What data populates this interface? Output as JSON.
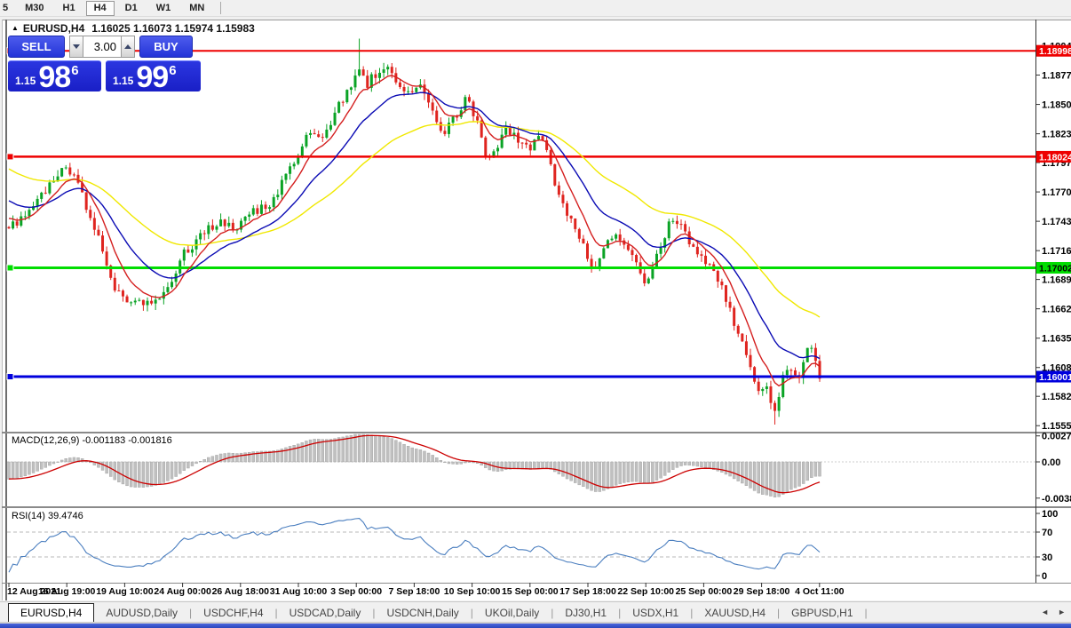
{
  "toolbar": {
    "timeframes": [
      "5",
      "M30",
      "H1",
      "H4",
      "D1",
      "W1",
      "MN"
    ],
    "active_timeframe": "H4"
  },
  "icons": {
    "collapse_arrow": "▲",
    "spinner_up": "up-triangle",
    "spinner_down": "down-triangle",
    "tab_scroll_left": "◄",
    "tab_scroll_right": "►"
  },
  "quote": {
    "sell_label": "SELL",
    "buy_label": "BUY",
    "volume": "3.00",
    "sell": {
      "prefix": "1.15",
      "big": "98",
      "sup": "6"
    },
    "buy": {
      "prefix": "1.15",
      "big": "99",
      "sup": "6"
    }
  },
  "symbol_tabs": {
    "tabs": [
      {
        "label": "EURUSD,H4",
        "active": true
      },
      {
        "label": "AUDUSD,Daily",
        "active": false
      },
      {
        "label": "USDCHF,H4",
        "active": false
      },
      {
        "label": "USDCAD,Daily",
        "active": false
      },
      {
        "label": "USDCNH,Daily",
        "active": false
      },
      {
        "label": "UKOil,Daily",
        "active": false
      },
      {
        "label": "DJ30,H1",
        "active": false
      },
      {
        "label": "USDX,H1",
        "active": false
      },
      {
        "label": "XAUUSD,H4",
        "active": false
      },
      {
        "label": "GBPUSD,H1",
        "active": false
      }
    ]
  },
  "chart_data": {
    "type": "candlestick",
    "title": "EURUSD,H4",
    "ohlc_line": "1.16025 1.16073 1.15974 1.15983",
    "bars": 200,
    "last_close": 1.15983,
    "price_axis": {
      "ticks": [
        "1.19045",
        "1.18775",
        "1.18505",
        "1.18235",
        "1.17970",
        "1.17700",
        "1.17430",
        "1.17160",
        "1.16895",
        "1.16625",
        "1.16355",
        "1.16085",
        "1.15820",
        "1.15550"
      ],
      "min": 1.15511,
      "max": 1.19253
    },
    "hlines": [
      {
        "price": 1.18998,
        "label": "1.18998",
        "color": "#ee0000",
        "label_text_color": "#ffffff",
        "width": 2
      },
      {
        "price": 1.18024,
        "label": "1.18024",
        "color": "#ee0000",
        "label_text_color": "#ffffff",
        "width": 2.5
      },
      {
        "price": 1.17002,
        "label": "1.17002",
        "color": "#00dd00",
        "label_text_color": "#000000",
        "width": 3
      },
      {
        "price": 1.16001,
        "label": "1.16001",
        "color": "#0000dd",
        "label_text_color": "#ffffff",
        "width": 3
      }
    ],
    "time_axis": [
      "12 Aug 2021",
      "16 Aug 19:00",
      "19 Aug 10:00",
      "24 Aug 00:00",
      "26 Aug 18:00",
      "31 Aug 10:00",
      "3 Sep 00:00",
      "7 Sep 18:00",
      "10 Sep 10:00",
      "15 Sep 00:00",
      "17 Sep 18:00",
      "22 Sep 10:00",
      "25 Sep 00:00",
      "29 Sep 18:00",
      "4 Oct 11:00"
    ],
    "price_path": [
      [
        0.0,
        1.1738
      ],
      [
        0.024,
        1.175
      ],
      [
        0.051,
        1.1778
      ],
      [
        0.066,
        1.1795
      ],
      [
        0.084,
        1.178
      ],
      [
        0.101,
        1.1745
      ],
      [
        0.117,
        1.1715
      ],
      [
        0.131,
        1.168
      ],
      [
        0.144,
        1.1668
      ],
      [
        0.161,
        1.1672
      ],
      [
        0.177,
        1.1665
      ],
      [
        0.193,
        1.168
      ],
      [
        0.215,
        1.1712
      ],
      [
        0.237,
        1.173
      ],
      [
        0.259,
        1.1742
      ],
      [
        0.281,
        1.1738
      ],
      [
        0.303,
        1.1752
      ],
      [
        0.325,
        1.1762
      ],
      [
        0.346,
        1.179
      ],
      [
        0.363,
        1.1815
      ],
      [
        0.376,
        1.1828
      ],
      [
        0.387,
        1.1818
      ],
      [
        0.401,
        1.184
      ],
      [
        0.415,
        1.186
      ],
      [
        0.426,
        1.1875
      ],
      [
        0.434,
        1.1885
      ],
      [
        0.442,
        1.187
      ],
      [
        0.45,
        1.1878
      ],
      [
        0.467,
        1.1885
      ],
      [
        0.481,
        1.1868
      ],
      [
        0.494,
        1.186
      ],
      [
        0.507,
        1.1868
      ],
      [
        0.521,
        1.1845
      ],
      [
        0.536,
        1.1822
      ],
      [
        0.551,
        1.184
      ],
      [
        0.562,
        1.1855
      ],
      [
        0.576,
        1.184
      ],
      [
        0.59,
        1.18
      ],
      [
        0.601,
        1.1812
      ],
      [
        0.614,
        1.183
      ],
      [
        0.627,
        1.182
      ],
      [
        0.641,
        1.181
      ],
      [
        0.656,
        1.1822
      ],
      [
        0.667,
        1.18
      ],
      [
        0.68,
        1.176
      ],
      [
        0.693,
        1.1745
      ],
      [
        0.707,
        1.1722
      ],
      [
        0.721,
        1.17
      ],
      [
        0.734,
        1.1722
      ],
      [
        0.748,
        1.1733
      ],
      [
        0.762,
        1.1718
      ],
      [
        0.776,
        1.17
      ],
      [
        0.787,
        1.1686
      ],
      [
        0.8,
        1.1712
      ],
      [
        0.813,
        1.1738
      ],
      [
        0.824,
        1.1745
      ],
      [
        0.838,
        1.1725
      ],
      [
        0.852,
        1.1715
      ],
      [
        0.866,
        1.17
      ],
      [
        0.879,
        1.1685
      ],
      [
        0.89,
        1.1658
      ],
      [
        0.901,
        1.164
      ],
      [
        0.912,
        1.1612
      ],
      [
        0.923,
        1.159
      ],
      [
        0.934,
        1.1588
      ],
      [
        0.944,
        1.157
      ],
      [
        0.955,
        1.16
      ],
      [
        0.964,
        1.1608
      ],
      [
        0.973,
        1.1592
      ],
      [
        0.981,
        1.1622
      ],
      [
        0.989,
        1.1632
      ],
      [
        1.0,
        1.1598
      ]
    ],
    "wick_spikes": [
      {
        "t": 0.434,
        "high": 1.1911
      },
      {
        "t": 0.944,
        "low": 1.1556
      }
    ],
    "preroll": {
      "bars": 45,
      "from": 1.1862,
      "to": 1.1738
    },
    "moving_averages": [
      {
        "period": 48,
        "color": "#f0e800"
      },
      {
        "period": 20,
        "color": "#0b0bb4"
      },
      {
        "period": 8,
        "color": "#d41f1f"
      }
    ],
    "colors": {
      "up": "#0aa325",
      "down": "#df241f",
      "macd_hist": "#c0c0c0",
      "macd_signal": "#cc0000",
      "rsi_line": "#4a7ebf"
    },
    "macd": {
      "label": "MACD(12,26,9) -0.001183 -0.001816",
      "fast": 12,
      "slow": 26,
      "signal": 9,
      "values_display": [
        "-0.001183",
        "-0.001816"
      ],
      "axis": [
        {
          "v": 0.002744,
          "label": "0.002744"
        },
        {
          "v": 0.0,
          "label": "0.00"
        },
        {
          "v": -0.00382,
          "label": "-0.00382"
        }
      ]
    },
    "rsi": {
      "label": "RSI(14) 39.4746",
      "period": 14,
      "value_display": "39.4746",
      "axis": [
        {
          "v": 100,
          "label": "100"
        },
        {
          "v": 70,
          "label": "70"
        },
        {
          "v": 30,
          "label": "30"
        },
        {
          "v": 0,
          "label": "0"
        }
      ],
      "levels": [
        70,
        30
      ]
    }
  }
}
